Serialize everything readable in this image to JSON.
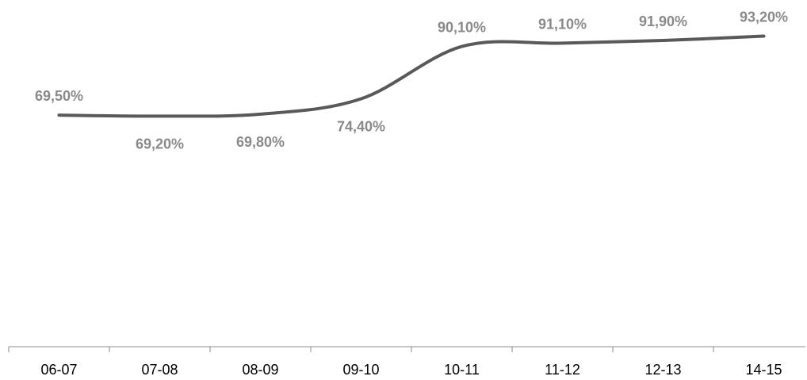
{
  "chart_data": {
    "type": "line",
    "title": "",
    "xlabel": "",
    "ylabel": "",
    "categories": [
      "06-07",
      "07-08",
      "08-09",
      "09-10",
      "10-11",
      "11-12",
      "12-13",
      "14-15"
    ],
    "series": [
      {
        "values": [
          69.5,
          69.2,
          69.8,
          74.4,
          90.1,
          91.1,
          91.9,
          93.2
        ],
        "labels": [
          "69,50%",
          "69,20%",
          "69,80%",
          "74,40%",
          "90,10%",
          "91,10%",
          "91,90%",
          "93,20%"
        ],
        "label_positions": [
          "above",
          "below",
          "below",
          "below",
          "above",
          "above",
          "above",
          "above"
        ]
      }
    ],
    "ylim": [
      0,
      100
    ],
    "grid": false,
    "legend": "none",
    "colors": {
      "line": "#595959",
      "data_label": "#8a8a8a",
      "tick_label": "#000000",
      "axis": "#8c8c8c"
    }
  }
}
